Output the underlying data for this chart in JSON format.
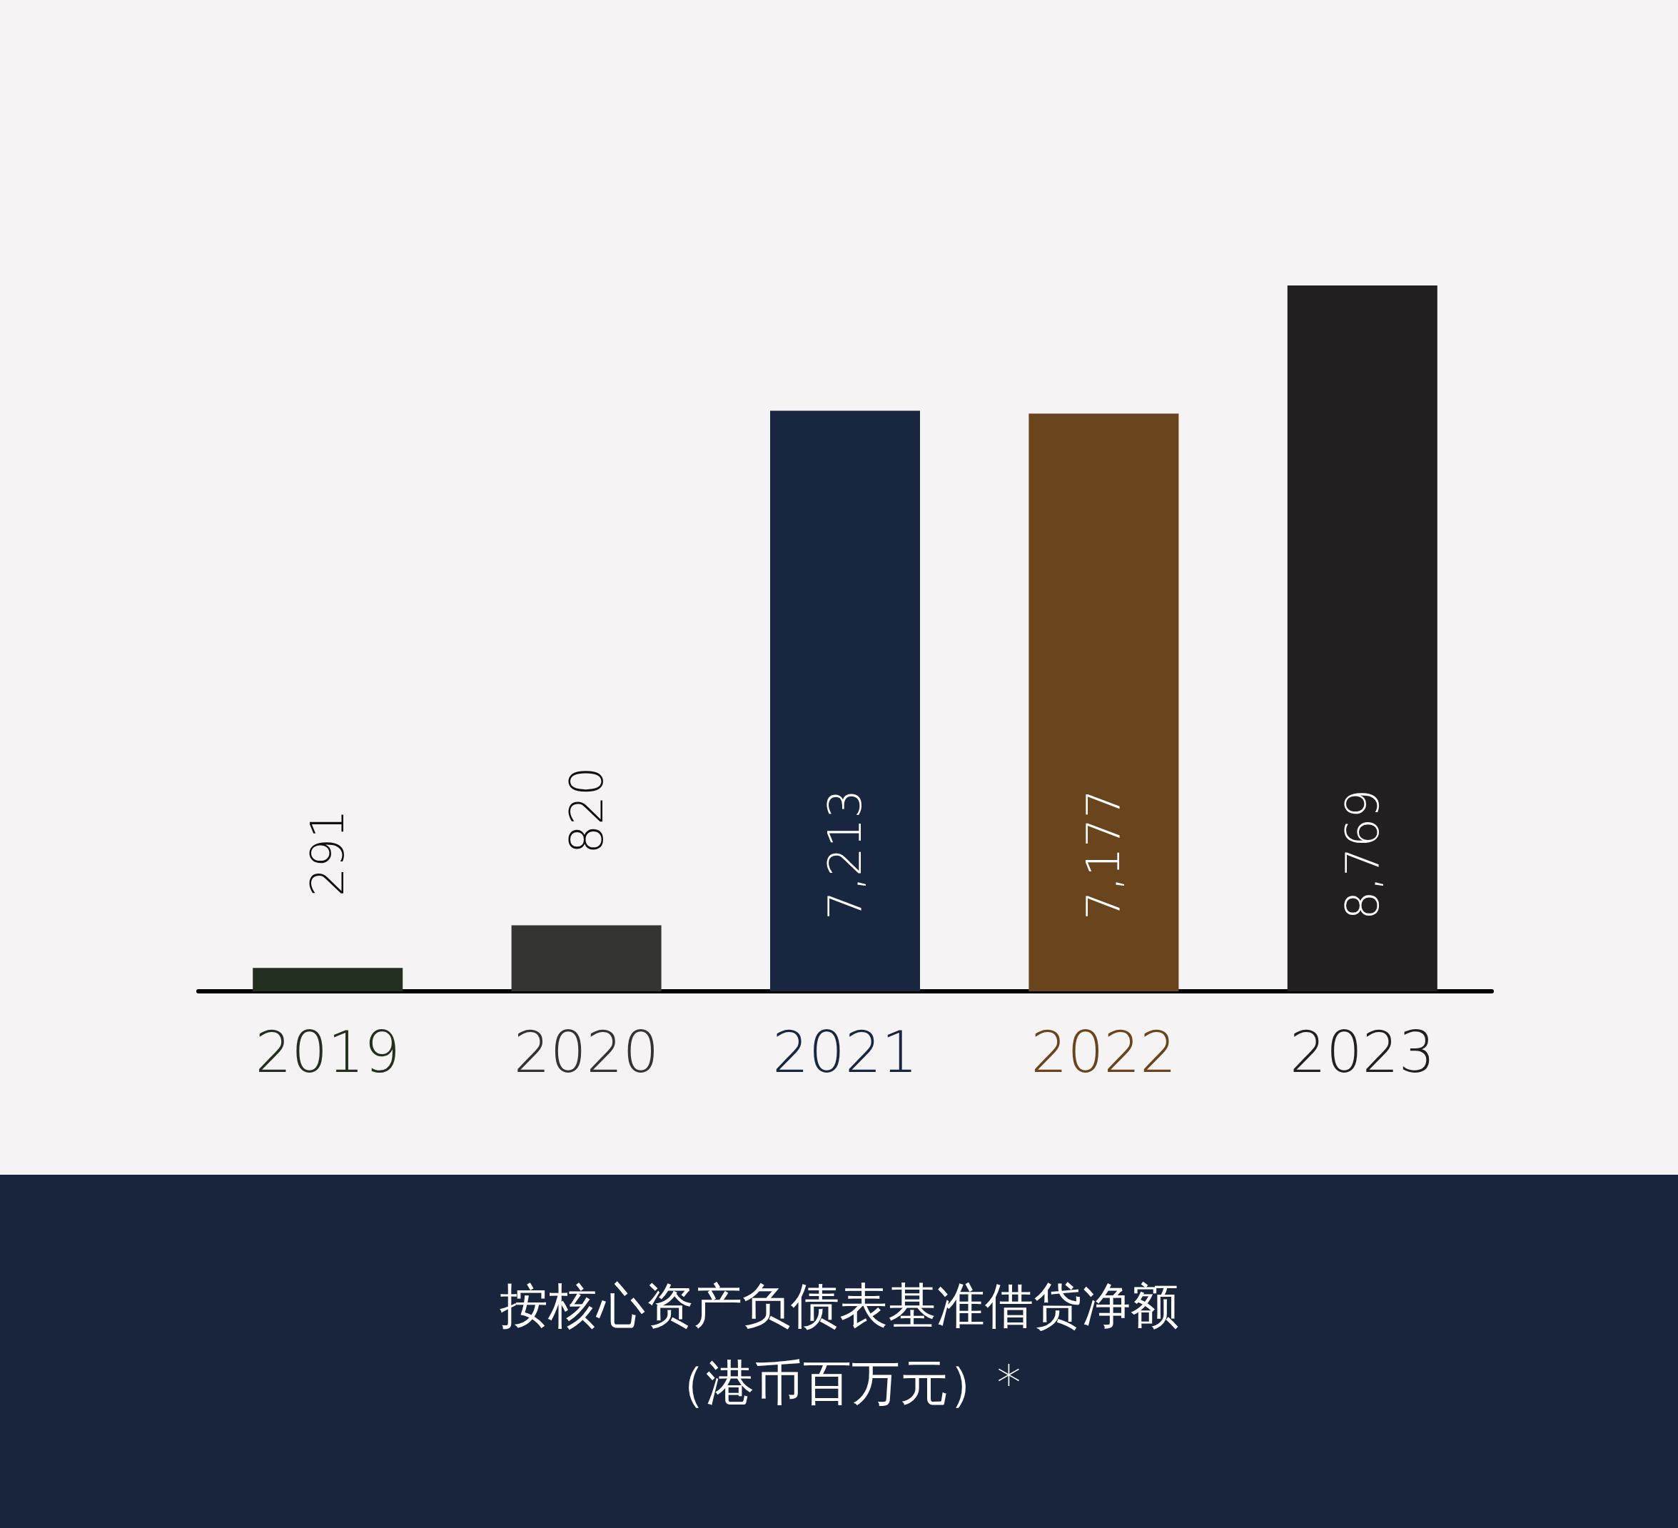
{
  "chart_data": {
    "type": "bar",
    "title": "按核心资产负债表基准借贷净额",
    "subtitle": "（港币百万元）*",
    "categories": [
      "2019",
      "2020",
      "2021",
      "2022",
      "2023"
    ],
    "values": [
      291,
      820,
      7213,
      7177,
      8769
    ],
    "colors": [
      "#233020",
      "#343532",
      "#18263f",
      "#6a441d",
      "#221f20"
    ],
    "value_labels": [
      "291",
      "820",
      "7,213",
      "7,177",
      "8,769"
    ],
    "grid": false
  }
}
